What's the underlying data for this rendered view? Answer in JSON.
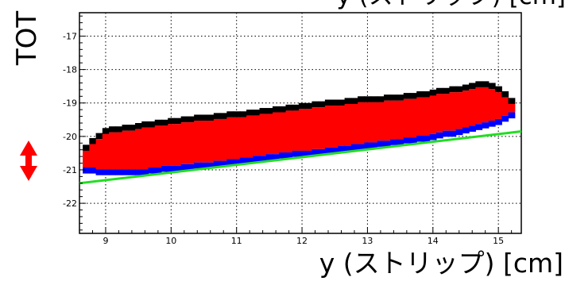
{
  "header_text_cropped": "y (ストリップ) [cm]",
  "chart_data": {
    "type": "heatmap",
    "xlabel": "y (ストリップ) [cm]",
    "ylabel": "TOT",
    "xlim": [
      8.6,
      15.35
    ],
    "ylim": [
      -22.9,
      -16.3
    ],
    "x_ticks": [
      9,
      10,
      11,
      12,
      13,
      14,
      15
    ],
    "y_ticks": [
      -17,
      -18,
      -19,
      -20,
      -21,
      -22
    ],
    "grid": true,
    "colors": {
      "upper_edge": "#000000",
      "band": "#ff0000",
      "lower_edge": "#0000ff",
      "fit_line": "#22dd22",
      "arrow": "#ff0000"
    },
    "band_upper_edge": {
      "x": [
        8.65,
        8.8,
        9.0,
        9.5,
        10.0,
        10.5,
        11.0,
        11.5,
        12.0,
        12.5,
        13.0,
        13.5,
        14.0,
        14.5,
        14.7,
        14.9,
        15.1,
        15.2
      ],
      "y": [
        -20.35,
        -20.05,
        -19.75,
        -19.6,
        -19.45,
        -19.35,
        -19.25,
        -19.15,
        -19.0,
        -18.9,
        -18.8,
        -18.75,
        -18.6,
        -18.45,
        -18.35,
        -18.4,
        -18.65,
        -18.85
      ]
    },
    "band_lower_edge": {
      "x": [
        8.65,
        9.0,
        9.5,
        10.0,
        10.5,
        11.0,
        11.5,
        12.0,
        12.5,
        13.0,
        13.5,
        14.0,
        14.5,
        14.8,
        15.0,
        15.2
      ],
      "y": [
        -21.05,
        -21.1,
        -21.1,
        -21.0,
        -20.9,
        -20.8,
        -20.65,
        -20.55,
        -20.45,
        -20.3,
        -20.2,
        -20.05,
        -19.85,
        -19.7,
        -19.6,
        -19.4
      ]
    },
    "fit_line": {
      "x": [
        8.6,
        15.35
      ],
      "y": [
        -21.4,
        -19.85
      ]
    },
    "legend": "none"
  },
  "marker": {
    "symbol": "double-arrow"
  }
}
